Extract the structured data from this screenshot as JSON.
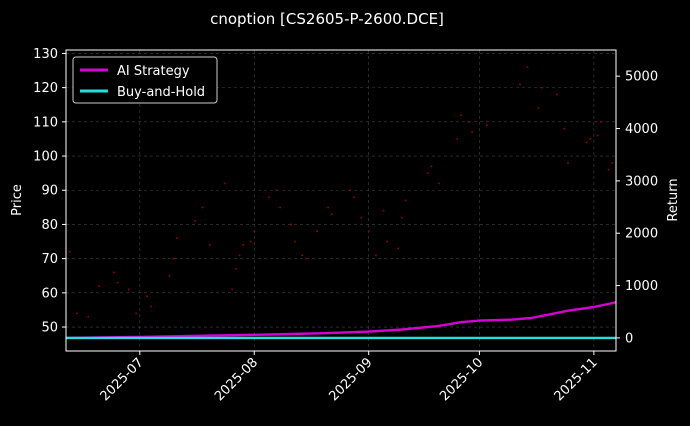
{
  "chart_data": {
    "type": "line",
    "title": "cnoption [CS2605-P-2600.DCE]",
    "ylabel": "Price",
    "y2label": "Return",
    "x_range": [
      "2025-06-11",
      "2025-11-07"
    ],
    "ylim": [
      43,
      131
    ],
    "y2lim": [
      -250,
      5500
    ],
    "yticks": [
      50,
      60,
      70,
      80,
      90,
      100,
      110,
      120,
      130
    ],
    "y2ticks": [
      0,
      1000,
      2000,
      3000,
      4000,
      5000
    ],
    "xticks": [
      {
        "date": "2025-07-01",
        "label": "2025-07"
      },
      {
        "date": "2025-08-01",
        "label": "2025-08"
      },
      {
        "date": "2025-09-01",
        "label": "2025-09"
      },
      {
        "date": "2025-10-01",
        "label": "2025-10"
      },
      {
        "date": "2025-11-01",
        "label": "2025-11"
      }
    ],
    "grid": true,
    "legend_position": "top-left",
    "colors": {
      "background": "#000000",
      "ai_strategy": "#d400d4",
      "buy_and_hold": "#22e0e0",
      "price_dots": "#8b0000",
      "grid": "#444444",
      "axis": "#ffffff"
    },
    "series": [
      {
        "name": "AI Strategy",
        "axis": "right",
        "points": [
          [
            "2025-06-11",
            0
          ],
          [
            "2025-07-01",
            20
          ],
          [
            "2025-07-20",
            45
          ],
          [
            "2025-08-05",
            65
          ],
          [
            "2025-08-20",
            90
          ],
          [
            "2025-09-01",
            120
          ],
          [
            "2025-09-10",
            160
          ],
          [
            "2025-09-20",
            230
          ],
          [
            "2025-09-26",
            300
          ],
          [
            "2025-10-01",
            330
          ],
          [
            "2025-10-10",
            350
          ],
          [
            "2025-10-15",
            380
          ],
          [
            "2025-10-20",
            450
          ],
          [
            "2025-10-25",
            520
          ],
          [
            "2025-11-01",
            590
          ],
          [
            "2025-11-07",
            680
          ]
        ]
      },
      {
        "name": "Buy-and-Hold",
        "axis": "right",
        "points": [
          [
            "2025-06-11",
            0
          ],
          [
            "2025-11-07",
            0
          ]
        ]
      }
    ],
    "price_points": [
      [
        "2025-06-12",
        72
      ],
      [
        "2025-06-14",
        54
      ],
      [
        "2025-06-17",
        53
      ],
      [
        "2025-06-20",
        62
      ],
      [
        "2025-06-24",
        66
      ],
      [
        "2025-06-25",
        63
      ],
      [
        "2025-06-28",
        61
      ],
      [
        "2025-06-30",
        54
      ],
      [
        "2025-07-03",
        59
      ],
      [
        "2025-07-04",
        56
      ],
      [
        "2025-07-09",
        65
      ],
      [
        "2025-07-10",
        70
      ],
      [
        "2025-07-11",
        76
      ],
      [
        "2025-07-16",
        81
      ],
      [
        "2025-07-18",
        85
      ],
      [
        "2025-07-20",
        74
      ],
      [
        "2025-07-24",
        92
      ],
      [
        "2025-07-26",
        61
      ],
      [
        "2025-07-27",
        67
      ],
      [
        "2025-07-28",
        71
      ],
      [
        "2025-07-29",
        74
      ],
      [
        "2025-07-31",
        75
      ],
      [
        "2025-08-01",
        78
      ],
      [
        "2025-08-05",
        88
      ],
      [
        "2025-08-07",
        90
      ],
      [
        "2025-08-08",
        85
      ],
      [
        "2025-08-11",
        80
      ],
      [
        "2025-08-12",
        75
      ],
      [
        "2025-08-14",
        71
      ],
      [
        "2025-08-15",
        70
      ],
      [
        "2025-08-18",
        78
      ],
      [
        "2025-08-21",
        85
      ],
      [
        "2025-08-22",
        83
      ],
      [
        "2025-08-27",
        90
      ],
      [
        "2025-08-28",
        88
      ],
      [
        "2025-08-30",
        82
      ],
      [
        "2025-09-01",
        78
      ],
      [
        "2025-09-03",
        71
      ],
      [
        "2025-09-05",
        84
      ],
      [
        "2025-09-06",
        75
      ],
      [
        "2025-09-09",
        73
      ],
      [
        "2025-09-10",
        82
      ],
      [
        "2025-09-11",
        87
      ],
      [
        "2025-09-17",
        95
      ],
      [
        "2025-09-18",
        97
      ],
      [
        "2025-09-20",
        92
      ],
      [
        "2025-09-25",
        105
      ],
      [
        "2025-09-26",
        112
      ],
      [
        "2025-09-28",
        110
      ],
      [
        "2025-09-29",
        107
      ],
      [
        "2025-10-03",
        109
      ],
      [
        "2025-10-12",
        121
      ],
      [
        "2025-10-14",
        126
      ],
      [
        "2025-10-17",
        114
      ],
      [
        "2025-10-18",
        120
      ],
      [
        "2025-10-22",
        118
      ],
      [
        "2025-10-24",
        108
      ],
      [
        "2025-10-25",
        98
      ],
      [
        "2025-10-30",
        104
      ],
      [
        "2025-10-31",
        105
      ],
      [
        "2025-11-02",
        106
      ],
      [
        "2025-11-03",
        110
      ],
      [
        "2025-11-05",
        96
      ],
      [
        "2025-11-06",
        98
      ]
    ]
  }
}
